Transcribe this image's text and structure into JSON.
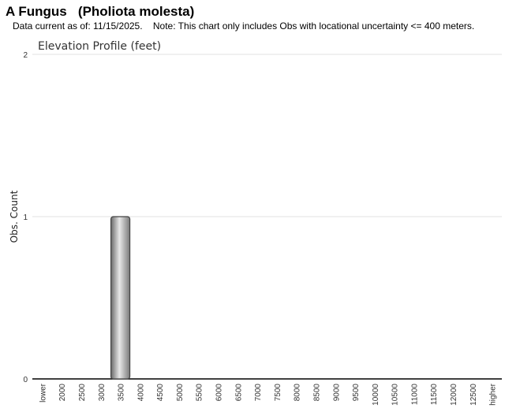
{
  "header": {
    "title": "A Fungus   (Pholiota molesta)",
    "note": "Data current as of: 11/15/2025.    Note: This chart only includes Obs with locational uncertainty <= 400 meters."
  },
  "chart_data": {
    "type": "bar",
    "title": "Elevation Profile (feet)",
    "xlabel": "",
    "ylabel": "Obs. Count",
    "ylim": [
      0,
      2
    ],
    "yticks": [
      "0",
      "1",
      "2"
    ],
    "grid": true,
    "categories": [
      "lower",
      "2000",
      "2500",
      "3000",
      "3500",
      "4000",
      "4500",
      "5000",
      "5500",
      "6000",
      "6500",
      "7000",
      "7500",
      "8000",
      "8500",
      "9000",
      "9500",
      "10000",
      "10500",
      "11000",
      "11500",
      "12000",
      "12500",
      "higher"
    ],
    "values": [
      0,
      0,
      0,
      0,
      1,
      0,
      0,
      0,
      0,
      0,
      0,
      0,
      0,
      0,
      0,
      0,
      0,
      0,
      0,
      0,
      0,
      0,
      0,
      0
    ],
    "bar_color": "#a0a0a0"
  }
}
